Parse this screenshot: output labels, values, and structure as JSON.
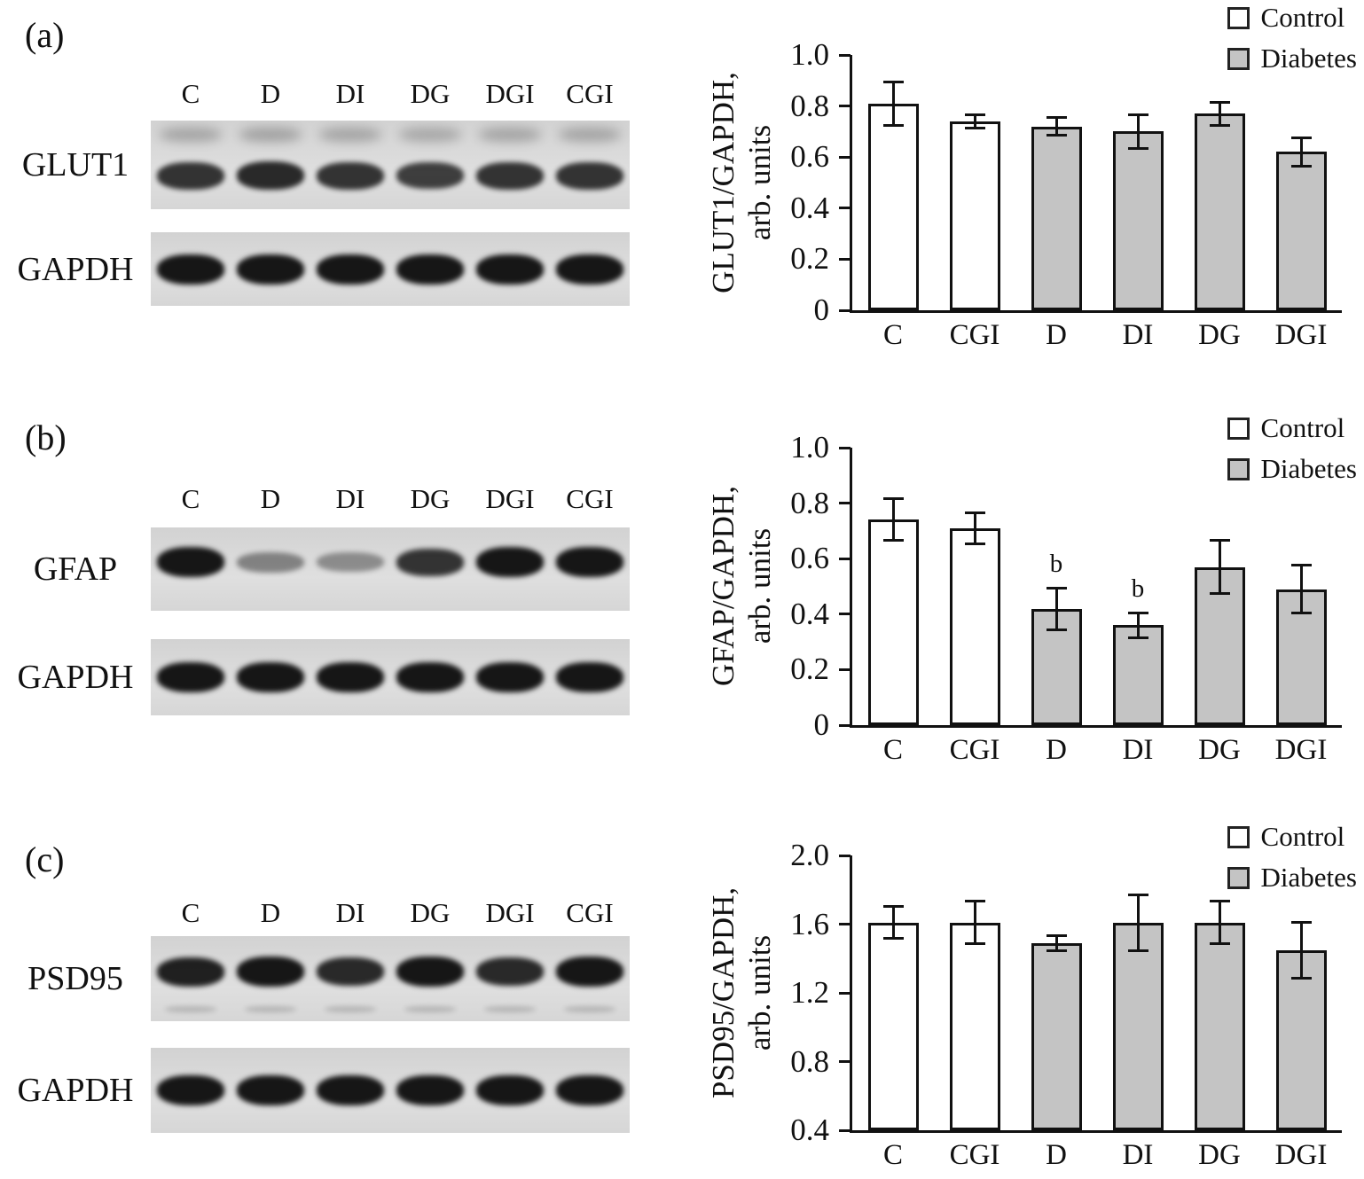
{
  "figure": {
    "panels": [
      {
        "tag": "(a)",
        "lanes": [
          "C",
          "D",
          "DI",
          "DG",
          "DGI",
          "CGI"
        ],
        "blots": [
          {
            "label": "GLUT1",
            "bands": [
              0.85,
              0.9,
              0.85,
              0.8,
              0.85,
              0.85
            ],
            "band_y": 0.62,
            "smear_top": true
          },
          {
            "label": "GAPDH",
            "bands": [
              1,
              1,
              1,
              1,
              1,
              1
            ],
            "band_y": 0.5
          }
        ]
      },
      {
        "tag": "(b)",
        "lanes": [
          "C",
          "D",
          "DI",
          "DG",
          "DGI",
          "CGI"
        ],
        "blots": [
          {
            "label": "GFAP",
            "bands": [
              1,
              0.45,
              0.4,
              0.85,
              1,
              1
            ],
            "band_y": 0.42
          },
          {
            "label": "GAPDH",
            "bands": [
              1,
              1,
              1,
              1,
              1,
              1
            ],
            "band_y": 0.5
          }
        ]
      },
      {
        "tag": "(c)",
        "lanes": [
          "C",
          "D",
          "DI",
          "DG",
          "DGI",
          "CGI"
        ],
        "blots": [
          {
            "label": "PSD95",
            "bands": [
              0.95,
              1,
              0.9,
              1,
              0.9,
              1
            ],
            "band_y": 0.42,
            "smear_bottom": true
          },
          {
            "label": "GAPDH",
            "bands": [
              1,
              1,
              1,
              1,
              1,
              1
            ],
            "band_y": 0.5
          }
        ]
      }
    ]
  },
  "legend": {
    "control": "Control",
    "diabetes": "Diabetes"
  },
  "colors": {
    "control": "#ffffff",
    "diabetes": "#c4c4c4",
    "axis": "#111111"
  },
  "chart_data": [
    {
      "type": "bar",
      "ylabel": "GLUT1/GAPDH,",
      "ylabel2": "arb. units",
      "categories": [
        "C",
        "CGI",
        "D",
        "DI",
        "DG",
        "DGI"
      ],
      "values": [
        0.81,
        0.74,
        0.72,
        0.7,
        0.77,
        0.62
      ],
      "errors": [
        0.09,
        0.03,
        0.04,
        0.07,
        0.05,
        0.06
      ],
      "groups": [
        "control",
        "control",
        "diabetes",
        "diabetes",
        "diabetes",
        "diabetes"
      ],
      "annotations": [
        "",
        "",
        "",
        "",
        "",
        ""
      ],
      "ylim": [
        0,
        1.0
      ],
      "yticks": [
        0,
        0.2,
        0.4,
        0.6,
        0.8,
        1.0
      ],
      "legend": [
        "Control",
        "Diabetes"
      ],
      "legend_position": "top-right",
      "grid": false
    },
    {
      "type": "bar",
      "ylabel": "GFAP/GAPDH,",
      "ylabel2": "arb. units",
      "categories": [
        "C",
        "CGI",
        "D",
        "DI",
        "DG",
        "DGI"
      ],
      "values": [
        0.74,
        0.71,
        0.42,
        0.36,
        0.57,
        0.49
      ],
      "errors": [
        0.08,
        0.06,
        0.08,
        0.05,
        0.1,
        0.09
      ],
      "groups": [
        "control",
        "control",
        "diabetes",
        "diabetes",
        "diabetes",
        "diabetes"
      ],
      "annotations": [
        "",
        "",
        "b",
        "b",
        "",
        ""
      ],
      "ylim": [
        0,
        1.0
      ],
      "yticks": [
        0,
        0.2,
        0.4,
        0.6,
        0.8,
        1.0
      ],
      "legend": [
        "Control",
        "Diabetes"
      ],
      "legend_position": "top-right",
      "grid": false
    },
    {
      "type": "bar",
      "ylabel": "PSD95/GAPDH,",
      "ylabel2": "arb. units",
      "categories": [
        "C",
        "CGI",
        "D",
        "DI",
        "DG",
        "DGI"
      ],
      "values": [
        1.61,
        1.61,
        1.49,
        1.61,
        1.61,
        1.45
      ],
      "errors": [
        0.1,
        0.13,
        0.05,
        0.17,
        0.13,
        0.17
      ],
      "groups": [
        "control",
        "control",
        "diabetes",
        "diabetes",
        "diabetes",
        "diabetes"
      ],
      "annotations": [
        "",
        "",
        "",
        "",
        "",
        ""
      ],
      "ylim": [
        0.4,
        2.0
      ],
      "yticks": [
        0.4,
        0.8,
        1.2,
        1.6,
        2.0
      ],
      "legend": [
        "Control",
        "Diabetes"
      ],
      "legend_position": "top-right",
      "grid": false
    }
  ]
}
